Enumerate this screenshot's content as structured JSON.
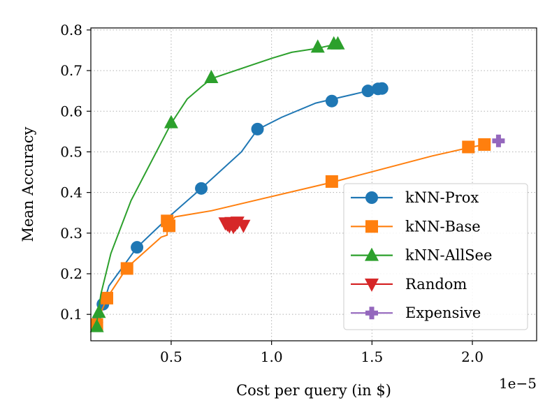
{
  "chart_data": {
    "type": "line",
    "title": "",
    "xlabel": "Cost per query (in $)",
    "ylabel": "Mean Accuracy",
    "x_offset_label": "1e−5",
    "xlim": [
      1e-06,
      2.32e-05
    ],
    "ylim": [
      0.035,
      0.805
    ],
    "x_ticks": [
      5e-06,
      1e-05,
      1.5e-05,
      2e-05
    ],
    "x_tick_labels": [
      "0.5",
      "1.0",
      "1.5",
      "2.0"
    ],
    "y_ticks": [
      0.1,
      0.2,
      0.3,
      0.4,
      0.5,
      0.6,
      0.7,
      0.8
    ],
    "y_tick_labels": [
      "0.1",
      "0.2",
      "0.3",
      "0.4",
      "0.5",
      "0.6",
      "0.7",
      "0.8"
    ],
    "grid": true,
    "legend_position": "lower-right",
    "series": [
      {
        "name": "kNN-Prox",
        "color": "#1f77b4",
        "marker": "circle",
        "line": [
          [
            1.3e-06,
            0.08
          ],
          [
            1.6e-06,
            0.12
          ],
          [
            1.9e-06,
            0.17
          ],
          [
            3.3e-06,
            0.265
          ],
          [
            5e-06,
            0.345
          ],
          [
            6.5e-06,
            0.41
          ],
          [
            8.5e-06,
            0.5
          ],
          [
            9.3e-06,
            0.555
          ],
          [
            1.05e-05,
            0.585
          ],
          [
            1.22e-05,
            0.62
          ],
          [
            1.35e-05,
            0.635
          ],
          [
            1.48e-05,
            0.65
          ],
          [
            1.55e-05,
            0.655
          ]
        ],
        "markers": [
          [
            1.3e-06,
            0.08
          ],
          [
            1.6e-06,
            0.125
          ],
          [
            3.3e-06,
            0.265
          ],
          [
            6.5e-06,
            0.41
          ],
          [
            9.3e-06,
            0.556
          ],
          [
            1.3e-05,
            0.625
          ],
          [
            1.48e-05,
            0.65
          ],
          [
            1.53e-05,
            0.655
          ],
          [
            1.55e-05,
            0.656
          ]
        ]
      },
      {
        "name": "kNN-Base",
        "color": "#ff7f0e",
        "marker": "square",
        "line": [
          [
            1.3e-06,
            0.08
          ],
          [
            1.8e-06,
            0.14
          ],
          [
            2.8e-06,
            0.215
          ],
          [
            4.5e-06,
            0.29
          ],
          [
            4.8e-06,
            0.295
          ],
          [
            4.8e-06,
            0.32
          ],
          [
            5e-06,
            0.33
          ],
          [
            5.2e-06,
            0.34
          ],
          [
            7e-06,
            0.355
          ],
          [
            1.3e-05,
            0.425
          ],
          [
            1.8e-05,
            0.49
          ],
          [
            1.98e-05,
            0.51
          ],
          [
            2.06e-05,
            0.518
          ]
        ],
        "markers": [
          [
            1.3e-06,
            0.075
          ],
          [
            1.8e-06,
            0.14
          ],
          [
            2.8e-06,
            0.213
          ],
          [
            4.8e-06,
            0.33
          ],
          [
            4.9e-06,
            0.318
          ],
          [
            1.3e-05,
            0.427
          ],
          [
            1.98e-05,
            0.512
          ],
          [
            2.06e-05,
            0.518
          ]
        ]
      },
      {
        "name": "kNN-AllSee",
        "color": "#2ca02c",
        "marker": "triangle-up",
        "line": [
          [
            1.3e-06,
            0.08
          ],
          [
            1.5e-06,
            0.15
          ],
          [
            2e-06,
            0.25
          ],
          [
            3e-06,
            0.38
          ],
          [
            5e-06,
            0.57
          ],
          [
            5.8e-06,
            0.63
          ],
          [
            6.5e-06,
            0.66
          ],
          [
            7e-06,
            0.68
          ],
          [
            1e-05,
            0.73
          ],
          [
            1.1e-05,
            0.745
          ],
          [
            1.23e-05,
            0.755
          ],
          [
            1.32e-05,
            0.765
          ]
        ],
        "markers": [
          [
            1.3e-06,
            0.07
          ],
          [
            1.4e-06,
            0.105
          ],
          [
            5e-06,
            0.572
          ],
          [
            7e-06,
            0.683
          ],
          [
            1.23e-05,
            0.758
          ],
          [
            1.31e-05,
            0.766
          ],
          [
            1.33e-05,
            0.766
          ]
        ]
      },
      {
        "name": "Random",
        "color": "#d62728",
        "marker": "triangle-down",
        "line": [],
        "markers": [
          [
            7.7e-06,
            0.325
          ],
          [
            7.8e-06,
            0.322
          ],
          [
            7.9e-06,
            0.318
          ],
          [
            8e-06,
            0.326
          ],
          [
            8.1e-06,
            0.316
          ],
          [
            8.2e-06,
            0.322
          ],
          [
            8.3e-06,
            0.327
          ],
          [
            8.6e-06,
            0.319
          ]
        ]
      },
      {
        "name": "Expensive",
        "color": "#9467bd",
        "marker": "plus",
        "line": [],
        "markers": [
          [
            2.13e-05,
            0.527
          ]
        ]
      }
    ]
  }
}
